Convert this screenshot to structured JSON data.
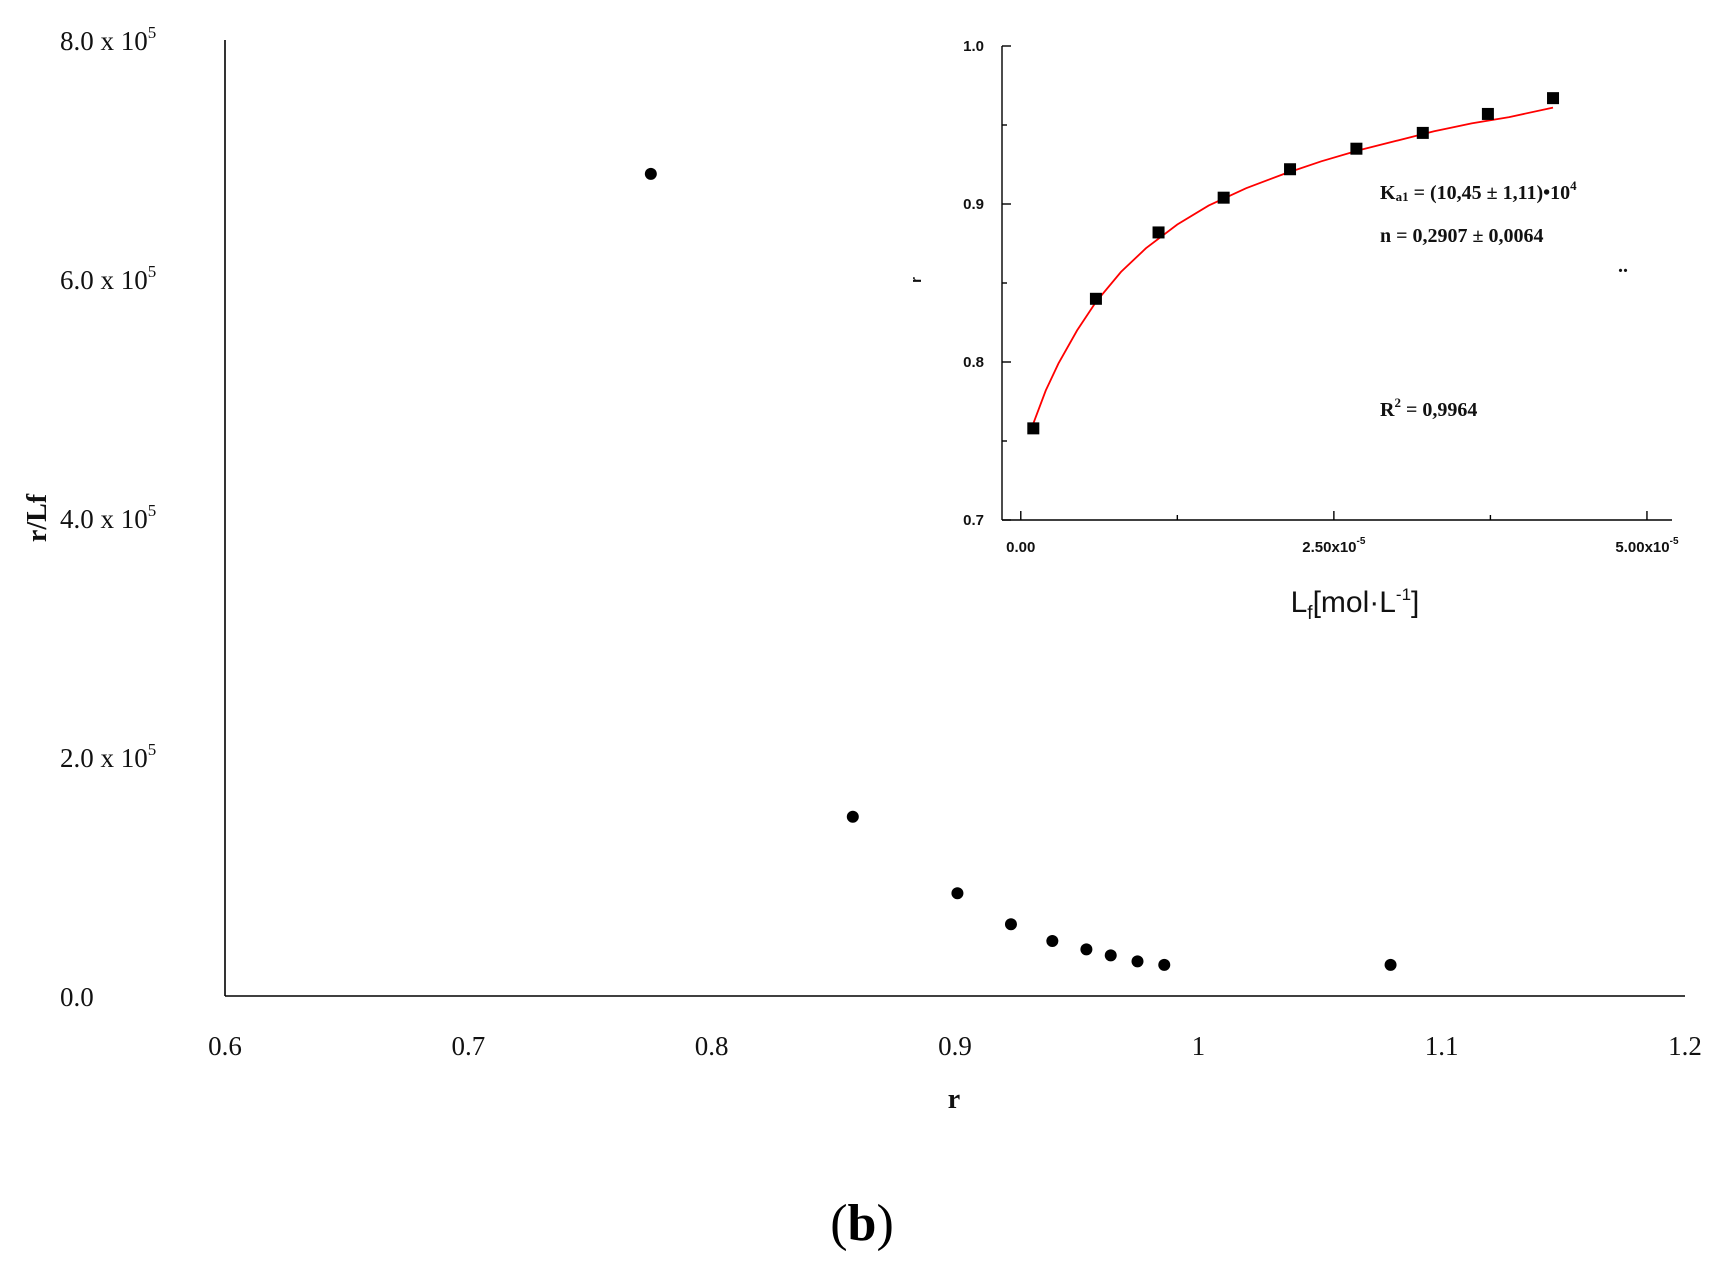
{
  "caption": {
    "paren_open": "(",
    "letter": "b",
    "paren_close": ")"
  },
  "chart_data": [
    {
      "type": "scatter",
      "xlabel": "r",
      "ylabel": "r/Lf",
      "xlim": [
        0.6,
        1.2
      ],
      "ylim": [
        0,
        800000
      ],
      "xticks": [
        0.6,
        0.7,
        0.8,
        0.9,
        1.0,
        1.1,
        1.2
      ],
      "xtick_labels": [
        "0.6",
        "0.7",
        "0.8",
        "0.9",
        "1",
        "1.1",
        "1.2"
      ],
      "yticks": [
        {
          "value": 0,
          "mantissa": "0.0",
          "times": "",
          "base": "",
          "exp": ""
        },
        {
          "value": 200000,
          "mantissa": "2.0",
          "times": " x ",
          "base": "10",
          "exp": "5"
        },
        {
          "value": 400000,
          "mantissa": "4.0",
          "times": " x ",
          "base": "10",
          "exp": "5"
        },
        {
          "value": 600000,
          "mantissa": "6.0",
          "times": " x ",
          "base": "10",
          "exp": "5"
        },
        {
          "value": 800000,
          "mantissa": "8.0",
          "times": " x ",
          "base": "10",
          "exp": "5"
        }
      ],
      "grid": false,
      "points": [
        {
          "x": 0.775,
          "y": 688000
        },
        {
          "x": 0.858,
          "y": 150000
        },
        {
          "x": 0.901,
          "y": 86000
        },
        {
          "x": 0.923,
          "y": 60000
        },
        {
          "x": 0.94,
          "y": 46000
        },
        {
          "x": 0.954,
          "y": 39000
        },
        {
          "x": 0.964,
          "y": 34000
        },
        {
          "x": 0.975,
          "y": 29000
        },
        {
          "x": 0.986,
          "y": 26000
        },
        {
          "x": 1.079,
          "y": 26000
        }
      ]
    },
    {
      "type": "scatter",
      "subtype": "scatter-with-fit",
      "xlabel": {
        "main": "L",
        "sub": "f",
        "rest": "[mol·L",
        "sup": "-1",
        "close": "]"
      },
      "ylabel": "r",
      "xlim": [
        -1.5e-06,
        5.2e-05
      ],
      "ylim": [
        0.7,
        1.0
      ],
      "xticks": [
        {
          "value": 0,
          "label": "0.00",
          "sup": ""
        },
        {
          "value": 2.5e-05,
          "label": "2.50x10",
          "sup": "-5"
        },
        {
          "value": 5e-05,
          "label": "5.00x10",
          "sup": "-5"
        }
      ],
      "yticks": [
        {
          "value": 0.7,
          "label": "0.7"
        },
        {
          "value": 0.8,
          "label": "0.8"
        },
        {
          "value": 0.9,
          "label": "0.9"
        },
        {
          "value": 1.0,
          "label": "1.0"
        }
      ],
      "grid": false,
      "points": [
        {
          "x": 1e-06,
          "y": 0.758
        },
        {
          "x": 6e-06,
          "y": 0.84
        },
        {
          "x": 1.1e-05,
          "y": 0.882
        },
        {
          "x": 1.62e-05,
          "y": 0.904
        },
        {
          "x": 2.15e-05,
          "y": 0.922
        },
        {
          "x": 2.68e-05,
          "y": 0.935
        },
        {
          "x": 3.21e-05,
          "y": 0.945
        },
        {
          "x": 3.73e-05,
          "y": 0.957
        },
        {
          "x": 4.25e-05,
          "y": 0.967
        }
      ],
      "fit": {
        "color": "#ff0000",
        "x": [
          1e-06,
          2e-06,
          3e-06,
          4.5e-06,
          6e-06,
          8e-06,
          1e-05,
          1.25e-05,
          1.5e-05,
          1.8e-05,
          2.1e-05,
          2.4e-05,
          2.7e-05,
          3e-05,
          3.3e-05,
          3.6e-05,
          3.9e-05,
          4.25e-05
        ],
        "y": [
          0.761,
          0.782,
          0.799,
          0.82,
          0.838,
          0.857,
          0.872,
          0.887,
          0.899,
          0.91,
          0.919,
          0.927,
          0.934,
          0.94,
          0.946,
          0.951,
          0.955,
          0.961
        ]
      },
      "annotations": {
        "ka_main": "K",
        "ka_sub": "a1",
        "ka_rest": " = (10,45 ± 1,11)•10",
        "ka_sup": "4",
        "n_line": "n = 0,2907 ± 0,0064",
        "dots": "..",
        "r2_main": "R",
        "r2_sup": "2",
        "r2_rest": " = 0,9964"
      }
    }
  ]
}
